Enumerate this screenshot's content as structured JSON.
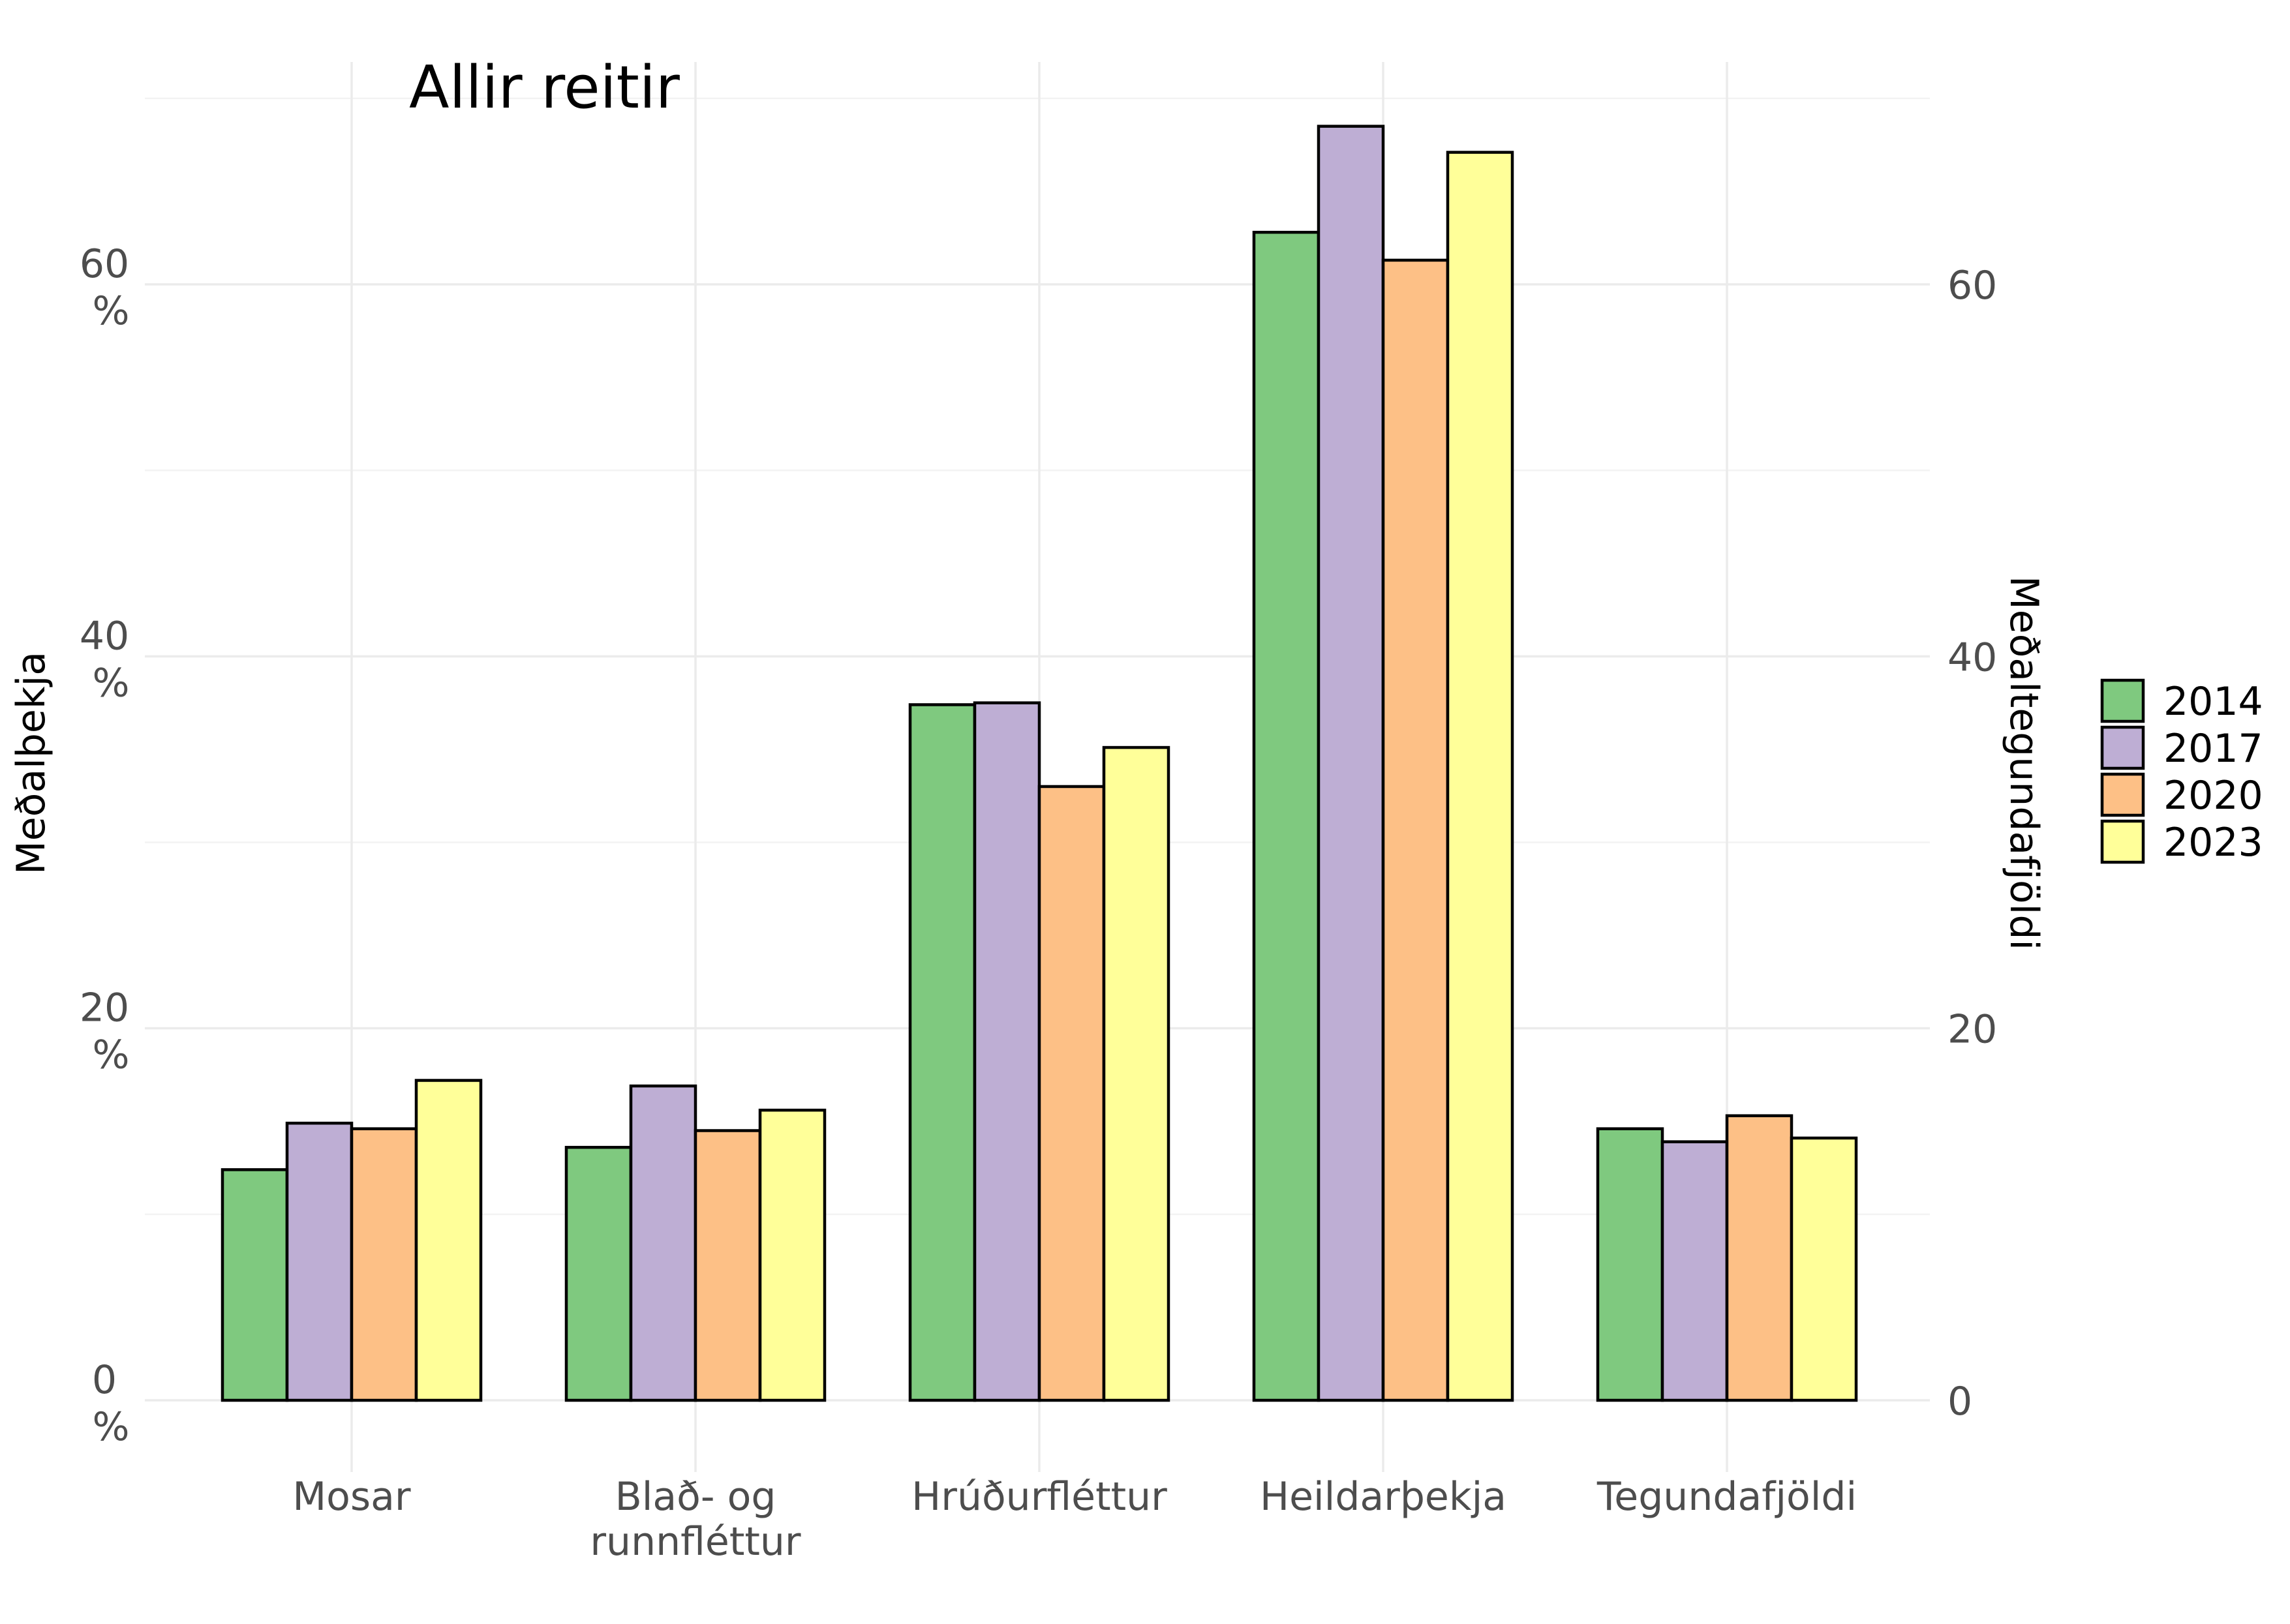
{
  "chart_data": {
    "type": "bar",
    "title": "Allir reitir",
    "ylabel": "Meðalþekja",
    "ylabel_right": "Meðaltegundafjöldi",
    "categories": [
      "Mosar",
      "Blað- og runnfléttur",
      "Hrúðurfléttur",
      "Heildarþekja",
      "Tegundafjöldi"
    ],
    "category_lines": [
      [
        "Mosar"
      ],
      [
        "Blað- og",
        "runnfléttur"
      ],
      [
        "Hrúðurfléttur"
      ],
      [
        "Heildarþekja"
      ],
      [
        "Tegundafjöldi"
      ]
    ],
    "series": [
      {
        "name": "2014",
        "color": "#7fc97f",
        "values": [
          12.4,
          13.6,
          37.4,
          62.8,
          14.6
        ]
      },
      {
        "name": "2017",
        "color": "#beaed4",
        "values": [
          14.9,
          16.9,
          37.5,
          68.5,
          13.9
        ]
      },
      {
        "name": "2020",
        "color": "#fdc086",
        "values": [
          14.6,
          14.5,
          33.0,
          61.3,
          15.3
        ]
      },
      {
        "name": "2023",
        "color": "#ffff99",
        "values": [
          17.2,
          15.6,
          35.1,
          67.1,
          14.1
        ]
      }
    ],
    "ylim": [
      -3,
      70
    ],
    "left_ticks": [
      {
        "value": 0,
        "lines": [
          "0",
          "%"
        ]
      },
      {
        "value": 20,
        "lines": [
          "20",
          "%"
        ]
      },
      {
        "value": 40,
        "lines": [
          "40",
          "%"
        ]
      },
      {
        "value": 60,
        "lines": [
          "60",
          "%"
        ]
      }
    ],
    "right_ticks": [
      {
        "value": 0,
        "label": "0"
      },
      {
        "value": 20,
        "label": "20"
      },
      {
        "value": 40,
        "label": "40"
      },
      {
        "value": 60,
        "label": "60"
      }
    ],
    "grid": true,
    "legend_position": "right"
  }
}
